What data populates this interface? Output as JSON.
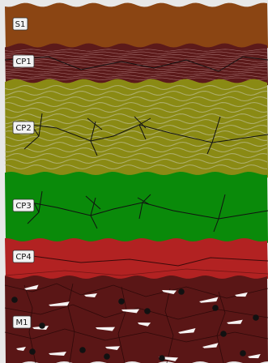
{
  "layers": [
    {
      "id": "s1",
      "label": "S1",
      "color": "#8b4513",
      "texture": "plain"
    },
    {
      "id": "cp1",
      "label": "CP1",
      "color": "#5c1a1a",
      "texture": "fine-laminae-with-crack"
    },
    {
      "id": "cp2",
      "label": "CP2",
      "color": "#8a8a14",
      "texture": "wavy-laminae-with-cracks"
    },
    {
      "id": "cp3",
      "label": "CP3",
      "color": "#0a8a0a",
      "texture": "cracks"
    },
    {
      "id": "cp4",
      "label": "CP4",
      "color": "#b22222",
      "texture": "lines"
    },
    {
      "id": "m1",
      "label": "M1",
      "color": "#5a1616",
      "texture": "clasts-and-dots"
    }
  ],
  "frame_color": "#e8e8e8"
}
